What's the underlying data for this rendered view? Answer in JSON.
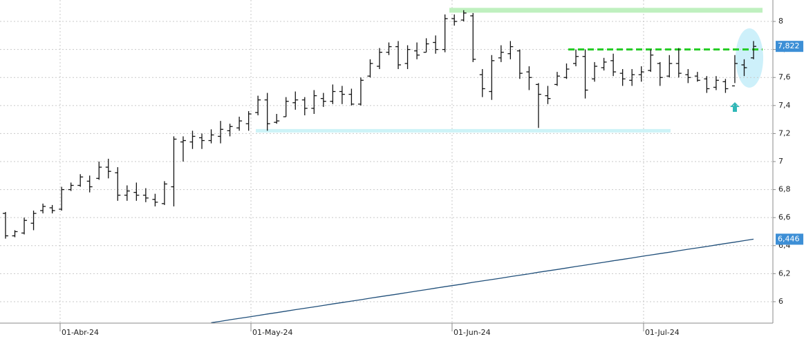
{
  "chart_data": {
    "type": "ohlc",
    "color": "#111111",
    "ylim": [
      5.847,
      8.153
    ],
    "yticks": [
      {
        "value": 6,
        "label": "6"
      },
      {
        "value": 6.2,
        "label": "6,2"
      },
      {
        "value": 6.4,
        "label": "6,4"
      },
      {
        "value": 6.6,
        "label": "6,6"
      },
      {
        "value": 6.8,
        "label": "6,8"
      },
      {
        "value": 7,
        "label": "7"
      },
      {
        "value": 7.2,
        "label": "7,2"
      },
      {
        "value": 7.4,
        "label": "7,4"
      },
      {
        "value": 7.6,
        "label": "7,6"
      },
      {
        "value": 7.8,
        "label": "7,8"
      },
      {
        "value": 8,
        "label": "8"
      }
    ],
    "xlim": [
      -0.59,
      82.07
    ],
    "xticks": [
      {
        "value": 5.84,
        "label": "01-Abr-24"
      },
      {
        "value": 26.25,
        "label": "01-May-24"
      },
      {
        "value": 47.76,
        "label": "01-Jun-24"
      },
      {
        "value": 68.24,
        "label": "01-Jul-24"
      }
    ],
    "grid": true,
    "open": [
      6.63,
      6.47,
      6.49,
      6.56,
      6.65,
      6.67,
      6.66,
      6.8,
      6.83,
      6.86,
      6.88,
      6.96,
      6.92,
      6.76,
      6.78,
      6.76,
      6.73,
      6.7,
      6.82,
      7.14,
      7.14,
      7.17,
      7.15,
      7.18,
      7.22,
      7.24,
      7.27,
      7.35,
      7.44,
      7.28,
      7.32,
      7.42,
      7.44,
      7.38,
      7.45,
      7.43,
      7.5,
      7.48,
      7.41,
      7.61,
      7.68,
      7.78,
      7.82,
      7.7,
      7.79,
      7.78,
      7.85,
      7.8,
      8.02,
      8.01,
      8.04,
      7.62,
      7.5,
      7.74,
      7.77,
      7.79,
      7.64,
      7.55,
      7.47,
      7.55,
      7.6,
      7.7,
      7.75,
      7.59,
      7.67,
      7.72,
      7.63,
      7.58,
      7.62,
      7.65,
      7.7,
      7.61,
      7.7,
      7.62,
      7.61,
      7.59,
      7.53,
      7.57,
      7.54,
      7.69,
      7.74
    ],
    "high": [
      6.64,
      6.51,
      6.6,
      6.65,
      6.7,
      6.69,
      6.82,
      6.85,
      6.91,
      6.9,
      7.0,
      7.02,
      6.96,
      6.83,
      6.85,
      6.81,
      6.77,
      6.86,
      7.18,
      7.18,
      7.22,
      7.2,
      7.23,
      7.29,
      7.27,
      7.32,
      7.36,
      7.47,
      7.49,
      7.34,
      7.46,
      7.5,
      7.46,
      7.51,
      7.49,
      7.55,
      7.54,
      7.52,
      7.6,
      7.73,
      7.81,
      7.85,
      7.86,
      7.83,
      7.85,
      7.88,
      7.9,
      8.05,
      8.05,
      8.08,
      8.06,
      7.66,
      7.76,
      7.83,
      7.86,
      7.8,
      7.68,
      7.56,
      7.54,
      7.64,
      7.7,
      7.8,
      7.8,
      7.71,
      7.74,
      7.77,
      7.66,
      7.66,
      7.68,
      7.8,
      7.71,
      7.76,
      7.81,
      7.66,
      7.64,
      7.61,
      7.61,
      7.59,
      7.76,
      7.73,
      7.86
    ],
    "low": [
      6.45,
      6.46,
      6.48,
      6.51,
      6.63,
      6.63,
      6.65,
      6.79,
      6.82,
      6.78,
      6.87,
      6.88,
      6.72,
      6.72,
      6.72,
      6.71,
      6.68,
      6.69,
      6.68,
      7.0,
      7.09,
      7.09,
      7.13,
      7.13,
      7.18,
      7.22,
      7.22,
      7.33,
      7.22,
      7.27,
      7.32,
      7.37,
      7.33,
      7.34,
      7.39,
      7.41,
      7.41,
      7.4,
      7.4,
      7.6,
      7.66,
      7.76,
      7.66,
      7.66,
      7.73,
      7.78,
      7.77,
      7.78,
      7.97,
      8.0,
      7.71,
      7.46,
      7.44,
      7.71,
      7.73,
      7.59,
      7.51,
      7.24,
      7.41,
      7.54,
      7.59,
      7.68,
      7.45,
      7.57,
      7.65,
      7.61,
      7.54,
      7.54,
      7.57,
      7.64,
      7.54,
      7.6,
      7.6,
      7.56,
      7.57,
      7.49,
      7.51,
      7.49,
      7.56,
      7.61,
      7.73
    ],
    "close": [
      6.47,
      6.5,
      6.58,
      6.63,
      6.68,
      6.65,
      6.8,
      6.83,
      6.89,
      6.82,
      6.96,
      6.93,
      6.76,
      6.79,
      6.76,
      6.74,
      6.71,
      6.84,
      7.16,
      7.15,
      7.18,
      7.15,
      7.19,
      7.23,
      7.25,
      7.29,
      7.34,
      7.44,
      7.27,
      7.29,
      7.43,
      7.44,
      7.38,
      7.47,
      7.43,
      7.5,
      7.48,
      7.41,
      7.58,
      7.7,
      7.78,
      7.82,
      7.69,
      7.8,
      7.76,
      7.84,
      7.8,
      8.02,
      8.0,
      8.06,
      7.73,
      7.52,
      7.72,
      7.78,
      7.82,
      7.63,
      7.6,
      7.48,
      7.45,
      7.61,
      7.66,
      7.75,
      7.51,
      7.68,
      7.71,
      7.64,
      7.59,
      7.62,
      7.64,
      7.76,
      7.6,
      7.7,
      7.63,
      7.6,
      7.58,
      7.52,
      7.58,
      7.52,
      7.7,
      7.67,
      7.822
    ],
    "moving_average": {
      "color": "#1f4e79",
      "values": [
        null,
        null,
        null,
        null,
        null,
        null,
        null,
        null,
        null,
        null,
        null,
        null,
        null,
        null,
        null,
        null,
        null,
        null,
        null,
        null,
        null,
        null,
        5.85,
        5.86,
        5.871,
        5.881,
        5.891,
        5.901,
        5.912,
        5.922,
        5.932,
        5.943,
        5.953,
        5.963,
        5.973,
        5.984,
        5.994,
        6.004,
        6.014,
        6.025,
        6.035,
        6.045,
        6.055,
        6.066,
        6.076,
        6.086,
        6.097,
        6.107,
        6.117,
        6.127,
        6.138,
        6.148,
        6.158,
        6.168,
        6.179,
        6.189,
        6.199,
        6.21,
        6.22,
        6.23,
        6.24,
        6.251,
        6.261,
        6.271,
        6.281,
        6.292,
        6.302,
        6.312,
        6.323,
        6.333,
        6.343,
        6.353,
        6.364,
        6.374,
        6.384,
        6.394,
        6.405,
        6.415,
        6.425,
        6.436,
        6.446
      ]
    },
    "levels": [
      {
        "value": 8.08,
        "color": "#bff0bf"
      },
      {
        "value": 7.22,
        "color": "#cdf3f7"
      },
      {
        "value": 7.8,
        "color": "#22cc22"
      }
    ],
    "price_labels": [
      {
        "value": 7.822,
        "label": "7,822",
        "color": "#3d8fd6"
      },
      {
        "value": 6.446,
        "label": "6,446",
        "color": "#3d8fd6"
      }
    ]
  }
}
